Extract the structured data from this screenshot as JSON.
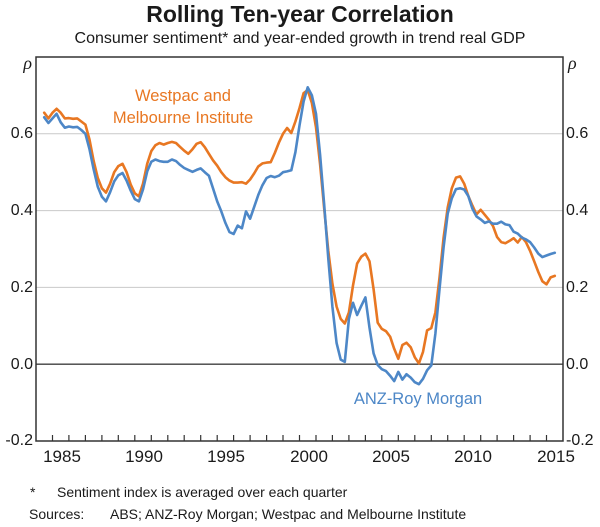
{
  "footnote": {
    "marker": "*",
    "text": "Sentiment index is averaged over each quarter"
  },
  "sources": {
    "label": "Sources:",
    "text": "ABS; ANZ-Roy Morgan; Westpac and Melbourne Institute"
  },
  "chart_data": {
    "type": "line",
    "title": "Rolling Ten-year Correlation",
    "subtitle": "Consumer sentiment* and year-ended growth in trend real GDP",
    "grid": "horizontal",
    "legend_position": "inline-annotations",
    "frame_color": "#333333",
    "gridline_color": "#c9c9c9",
    "zeroline_color": "#3f3f3f",
    "y_axis": {
      "symbol": "ρ",
      "lim": [
        -0.2,
        0.8
      ],
      "gridline_values": [
        0.6,
        0.4,
        0.2,
        0.0
      ],
      "ticks": [
        {
          "v": 0.6,
          "label": "0.6"
        },
        {
          "v": 0.4,
          "label": "0.4"
        },
        {
          "v": 0.2,
          "label": "0.2"
        },
        {
          "v": 0.0,
          "label": "0.0"
        },
        {
          "v": -0.2,
          "label": "-0.2"
        }
      ]
    },
    "x_axis": {
      "lim": [
        1984,
        2016
      ],
      "minor_tick_interval": 1,
      "ticks": [
        {
          "v": 1985,
          "label": "1985"
        },
        {
          "v": 1990,
          "label": "1990"
        },
        {
          "v": 1995,
          "label": "1995"
        },
        {
          "v": 2000,
          "label": "2000"
        },
        {
          "v": 2005,
          "label": "2005"
        },
        {
          "v": 2010,
          "label": "2010"
        },
        {
          "v": 2015,
          "label": "2015"
        }
      ]
    },
    "series": [
      {
        "id": "westpac-mi",
        "name": "Westpac and Melbourne Institute",
        "label_lines": [
          "Westpac and",
          "Melbourne Institute"
        ],
        "color": "#E87722",
        "x_start": 1984.5,
        "x_step": 0.25,
        "values": [
          0.655,
          0.64,
          0.655,
          0.665,
          0.655,
          0.64,
          0.641,
          0.639,
          0.64,
          0.632,
          0.624,
          0.585,
          0.53,
          0.485,
          0.458,
          0.447,
          0.47,
          0.5,
          0.516,
          0.522,
          0.5,
          0.468,
          0.445,
          0.437,
          0.47,
          0.522,
          0.555,
          0.57,
          0.576,
          0.572,
          0.576,
          0.579,
          0.576,
          0.566,
          0.556,
          0.548,
          0.56,
          0.574,
          0.578,
          0.565,
          0.548,
          0.531,
          0.517,
          0.5,
          0.487,
          0.478,
          0.473,
          0.473,
          0.474,
          0.47,
          0.481,
          0.497,
          0.515,
          0.523,
          0.525,
          0.526,
          0.55,
          0.577,
          0.6,
          0.615,
          0.602,
          0.632,
          0.667,
          0.706,
          0.714,
          0.68,
          0.617,
          0.52,
          0.405,
          0.295,
          0.21,
          0.15,
          0.118,
          0.106,
          0.135,
          0.205,
          0.262,
          0.28,
          0.288,
          0.268,
          0.195,
          0.108,
          0.092,
          0.086,
          0.072,
          0.04,
          0.014,
          0.05,
          0.056,
          0.044,
          0.018,
          0.002,
          0.032,
          0.088,
          0.094,
          0.135,
          0.225,
          0.33,
          0.408,
          0.458,
          0.486,
          0.489,
          0.47,
          0.438,
          0.413,
          0.39,
          0.402,
          0.389,
          0.376,
          0.36,
          0.331,
          0.318,
          0.315,
          0.321,
          0.328,
          0.317,
          0.331,
          0.318,
          0.295,
          0.268,
          0.24,
          0.216,
          0.208,
          0.226,
          0.23
        ]
      },
      {
        "id": "anz-roy-morgan",
        "name": "ANZ-Roy Morgan",
        "label_lines": [
          "ANZ-Roy Morgan"
        ],
        "color": "#4D87C7",
        "x_start": 1984.5,
        "x_step": 0.25,
        "values": [
          0.643,
          0.628,
          0.64,
          0.652,
          0.63,
          0.616,
          0.619,
          0.617,
          0.618,
          0.61,
          0.6,
          0.56,
          0.508,
          0.462,
          0.436,
          0.424,
          0.448,
          0.476,
          0.492,
          0.498,
          0.478,
          0.452,
          0.43,
          0.424,
          0.455,
          0.502,
          0.527,
          0.533,
          0.529,
          0.527,
          0.527,
          0.533,
          0.529,
          0.519,
          0.511,
          0.506,
          0.501,
          0.506,
          0.51,
          0.5,
          0.491,
          0.458,
          0.424,
          0.398,
          0.368,
          0.344,
          0.339,
          0.361,
          0.354,
          0.398,
          0.379,
          0.41,
          0.441,
          0.466,
          0.485,
          0.49,
          0.487,
          0.491,
          0.5,
          0.502,
          0.505,
          0.552,
          0.622,
          0.684,
          0.721,
          0.7,
          0.652,
          0.545,
          0.415,
          0.275,
          0.15,
          0.055,
          0.012,
          0.006,
          0.118,
          0.16,
          0.128,
          0.152,
          0.174,
          0.095,
          0.028,
          -0.002,
          -0.013,
          -0.018,
          -0.03,
          -0.044,
          -0.02,
          -0.04,
          -0.026,
          -0.035,
          -0.047,
          -0.052,
          -0.038,
          -0.016,
          -0.003,
          0.08,
          0.195,
          0.305,
          0.392,
          0.432,
          0.456,
          0.458,
          0.455,
          0.438,
          0.405,
          0.385,
          0.377,
          0.368,
          0.372,
          0.366,
          0.366,
          0.371,
          0.364,
          0.362,
          0.345,
          0.34,
          0.33,
          0.325,
          0.318,
          0.304,
          0.288,
          0.279,
          0.283,
          0.287,
          0.29
        ]
      }
    ]
  }
}
